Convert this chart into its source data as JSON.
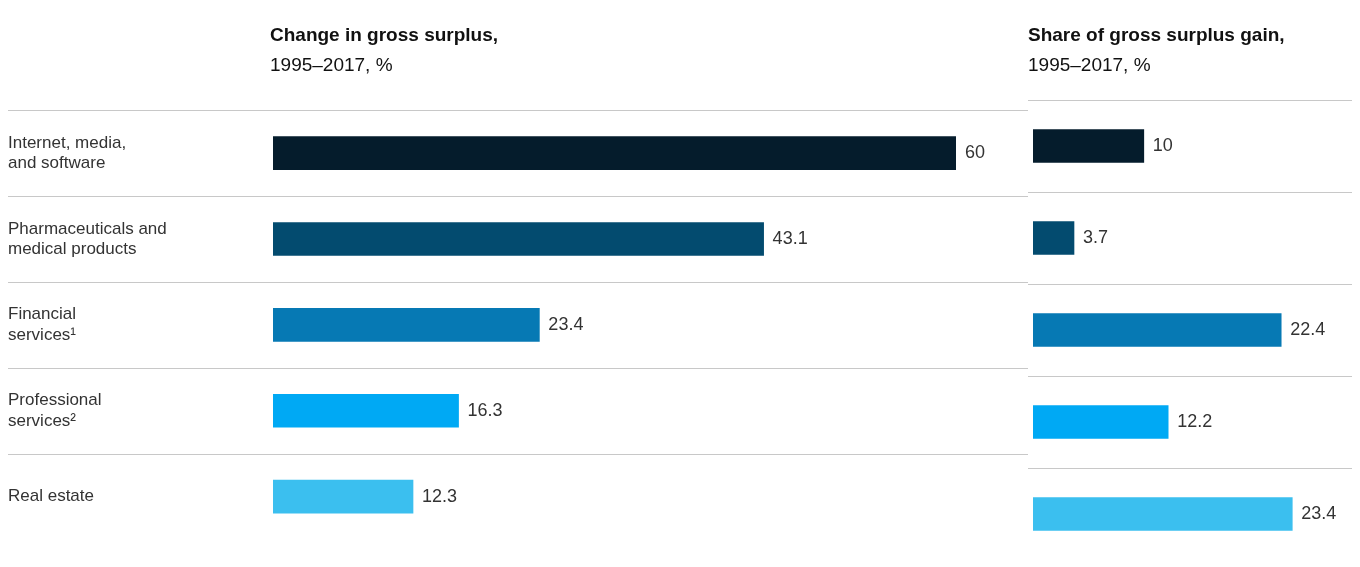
{
  "chart_data": [
    {
      "type": "bar",
      "orientation": "horizontal",
      "title": "Change in gross surplus,",
      "subtitle": "1995–2017, %",
      "categories": [
        "Internet, media,\nand software",
        "Pharmaceuticals and\nmedical products",
        "Financial\nservices¹",
        "Professional\nservices²",
        "Real estate"
      ],
      "values": [
        60,
        43.1,
        23.4,
        16.3,
        12.3
      ],
      "colors": [
        "#051c2c",
        "#034b6f",
        "#0679b4",
        "#00a9f4",
        "#3bbfef"
      ],
      "tick_labels": "y",
      "grid": "y",
      "legend": false,
      "data_labels": true
    },
    {
      "type": "bar",
      "orientation": "horizontal",
      "title": "Share of gross surplus gain,",
      "subtitle": "1995–2017, %",
      "categories": [
        null,
        null,
        null,
        null,
        null
      ],
      "values": [
        10,
        3.7,
        22.4,
        12.2,
        23.4
      ],
      "colors": [
        "#051c2c",
        "#034b6f",
        "#0679b4",
        "#00a9f4",
        "#3bbfef"
      ],
      "tick_labels": false,
      "grid": "y",
      "legend": false,
      "data_labels": true
    }
  ]
}
